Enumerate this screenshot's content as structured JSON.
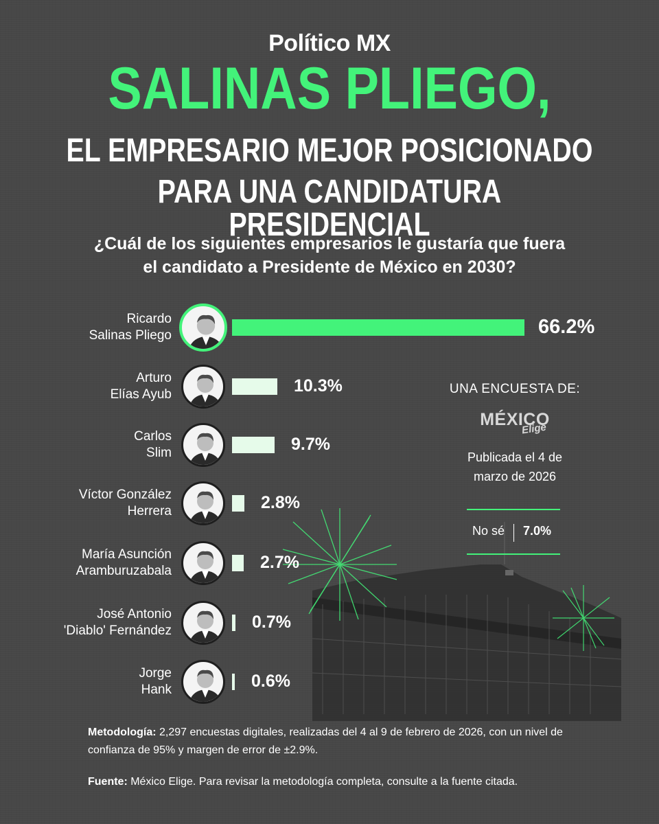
{
  "header": {
    "brand": "Político MX",
    "title": "SALINAS PLIEGO,",
    "subtitle_line1": "EL EMPRESARIO MEJOR POSICIONADO",
    "subtitle_line2": "PARA UNA CANDIDATURA PRESIDENCIAL",
    "question_line1": "¿Cuál de los siguientes empresarios le gustaría que fuera",
    "question_line2": "el candidato a Presidente de México en 2030?"
  },
  "chart_data": {
    "type": "bar",
    "orientation": "horizontal",
    "categories": [
      [
        "Ricardo",
        "Salinas Pliego"
      ],
      [
        "Arturo",
        "Elías Ayub"
      ],
      [
        "Carlos",
        "Slim"
      ],
      [
        "Víctor González",
        "Herrera"
      ],
      [
        "María Asunción",
        "Aramburuzabala"
      ],
      [
        "José Antonio",
        "'Diablo' Fernández"
      ],
      [
        "Jorge",
        "Hank"
      ]
    ],
    "values": [
      66.2,
      10.3,
      9.7,
      2.8,
      2.7,
      0.7,
      0.6
    ],
    "value_labels": [
      "66.2%",
      "10.3%",
      "9.7%",
      "2.8%",
      "2.7%",
      "0.7%",
      "0.6%"
    ],
    "highlight_color": "#43f37a",
    "bar_color": "#e6fbea"
  },
  "side_panel": {
    "heading": "UNA ENCUESTA DE:",
    "logo_main": "MÉXICO",
    "logo_sub": "Elige",
    "published_line1": "Publicada el 4 de",
    "published_line2": "marzo de 2026",
    "no_se_label": "No sé",
    "no_se_value": "7.0%"
  },
  "footer": {
    "methodology_label": "Metodología:",
    "methodology_text": " 2,297 encuestas digitales, realizadas del 4 al 9 de febrero de 2026, con un nivel de confianza de 95% y margen de error de ±2.9%.",
    "source_label": "Fuente:",
    "source_text": " México Elige. Para revisar la metodología completa, consulte a la fuente citada."
  },
  "colors": {
    "background": "#474747",
    "accent": "#43f37a",
    "text": "#ffffff"
  }
}
